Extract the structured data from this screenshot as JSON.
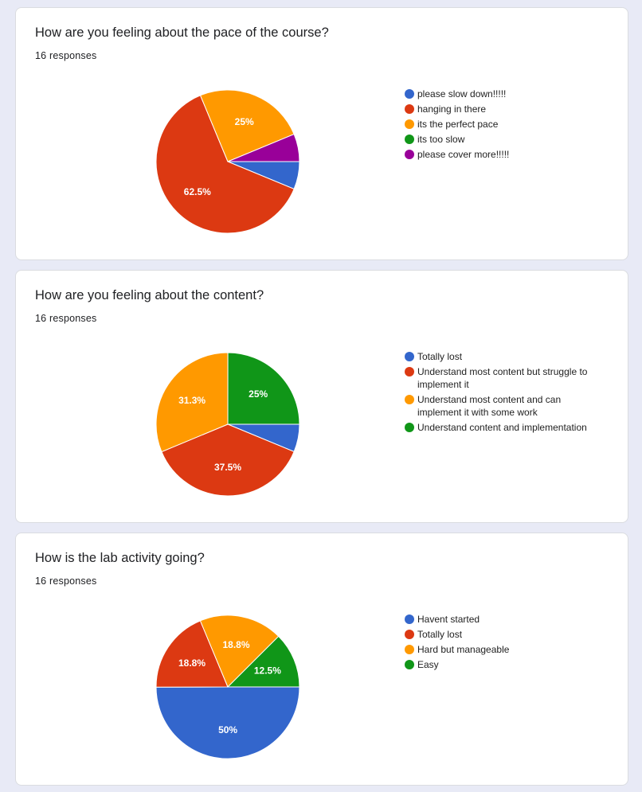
{
  "cards": [
    {
      "title": "How are you feeling about the pace of the course?",
      "responses": "16 responses"
    },
    {
      "title": "How are you feeling about the content?",
      "responses": "16 responses"
    },
    {
      "title": "How is the lab activity going?",
      "responses": "16 responses"
    }
  ],
  "chart_data": [
    {
      "type": "pie",
      "title": "How are you feeling about the pace of the course?",
      "categories": [
        "please slow down!!!!!",
        "hanging in there",
        "its the perfect pace",
        "its too slow",
        "please cover more!!!!!"
      ],
      "values": [
        6.25,
        62.5,
        25,
        0,
        6.25
      ],
      "labels": [
        "",
        "62.5%",
        "25%",
        "",
        ""
      ],
      "colors": [
        "#3366cc",
        "#dc3912",
        "#ff9900",
        "#109618",
        "#990099"
      ],
      "legend": "right"
    },
    {
      "type": "pie",
      "title": "How are you feeling about the content?",
      "categories": [
        "Totally lost",
        "Understand most content but struggle to implement it",
        "Understand most content and can implement it with some work",
        "Understand content and implementation"
      ],
      "values": [
        6.25,
        37.5,
        31.3,
        25
      ],
      "labels": [
        "",
        "37.5%",
        "31.3%",
        "25%"
      ],
      "colors": [
        "#3366cc",
        "#dc3912",
        "#ff9900",
        "#109618"
      ],
      "legend": "right"
    },
    {
      "type": "pie",
      "title": "How is the lab activity going?",
      "categories": [
        "Havent started",
        "Totally lost",
        "Hard but manageable",
        "Easy"
      ],
      "values": [
        50,
        18.8,
        18.8,
        12.5
      ],
      "labels": [
        "50%",
        "18.8%",
        "18.8%",
        "12.5%"
      ],
      "colors": [
        "#3366cc",
        "#dc3912",
        "#ff9900",
        "#109618"
      ],
      "legend": "right"
    }
  ]
}
